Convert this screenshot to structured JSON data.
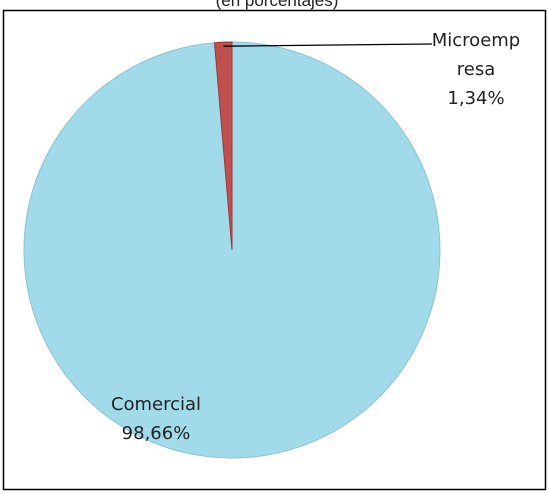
{
  "chart_data": {
    "type": "pie",
    "subtitle": "(en porcentajes)",
    "categories": [
      "Comercial",
      "Microempresa"
    ],
    "values": [
      98.66,
      1.34
    ],
    "value_labels": [
      "98,66%",
      "1,34%"
    ],
    "colors": [
      "#a1dbea",
      "#c0504d"
    ]
  }
}
